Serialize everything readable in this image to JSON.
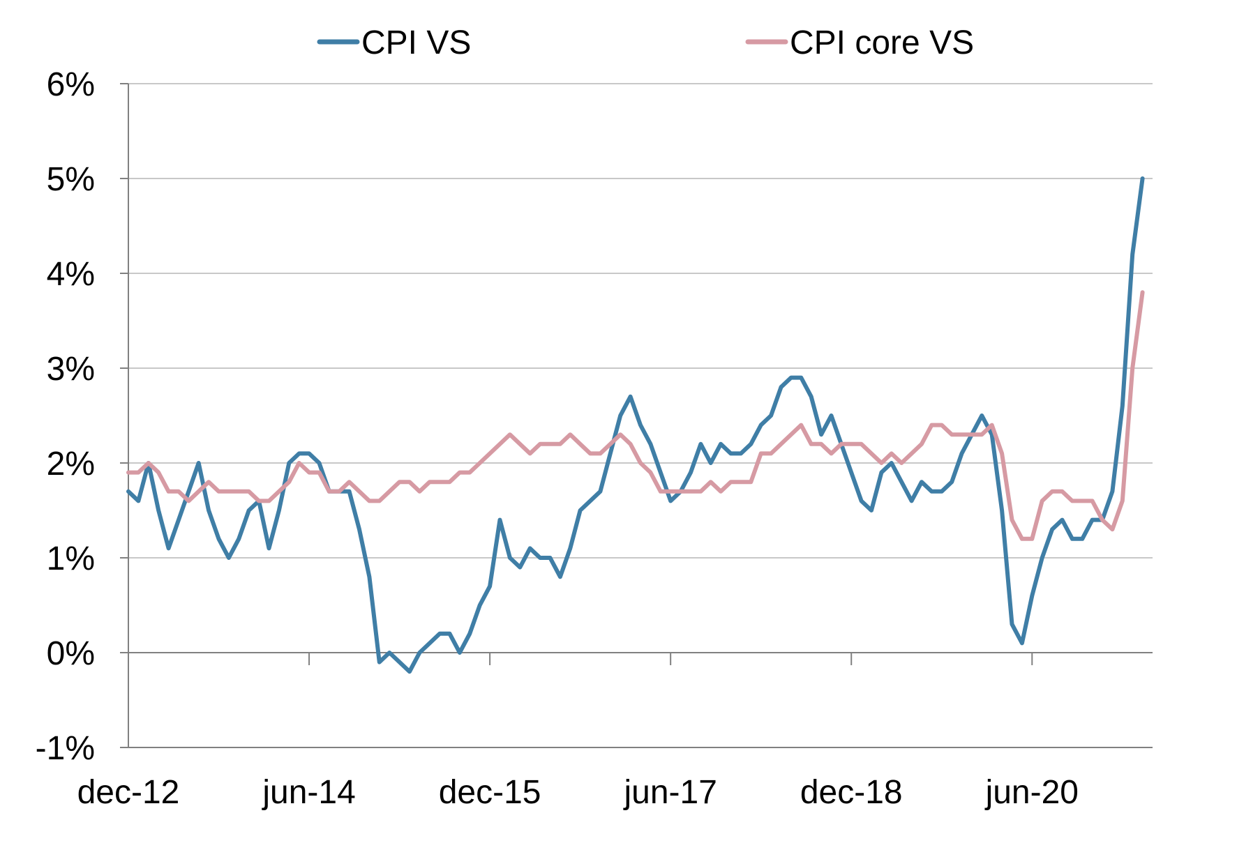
{
  "chart_data": {
    "type": "line",
    "title": "",
    "xlabel": "",
    "ylabel": "",
    "ylim": [
      -1,
      6
    ],
    "y_ticks": [
      "-1%",
      "0%",
      "1%",
      "2%",
      "3%",
      "4%",
      "5%",
      "6%"
    ],
    "x_ticks": [
      "dec-12",
      "jun-14",
      "dec-15",
      "jun-17",
      "dec-18",
      "jun-20"
    ],
    "x_range": [
      "2012-12",
      "2021-06"
    ],
    "grid": "horizontal",
    "legend_position": "top",
    "colors": {
      "cpi": "#3f7ea6",
      "core": "#d69aa3",
      "grid": "#c8c8c8",
      "axis": "#808080"
    },
    "series": [
      {
        "name": "CPI VS",
        "key": "cpi",
        "points": [
          [
            "2012-12",
            1.7
          ],
          [
            "2013-01",
            1.6
          ],
          [
            "2013-02",
            2.0
          ],
          [
            "2013-03",
            1.5
          ],
          [
            "2013-04",
            1.1
          ],
          [
            "2013-05",
            1.4
          ],
          [
            "2013-06",
            1.7
          ],
          [
            "2013-07",
            2.0
          ],
          [
            "2013-08",
            1.5
          ],
          [
            "2013-09",
            1.2
          ],
          [
            "2013-10",
            1.0
          ],
          [
            "2013-11",
            1.2
          ],
          [
            "2013-12",
            1.5
          ],
          [
            "2014-01",
            1.6
          ],
          [
            "2014-02",
            1.1
          ],
          [
            "2014-03",
            1.5
          ],
          [
            "2014-04",
            2.0
          ],
          [
            "2014-05",
            2.1
          ],
          [
            "2014-06",
            2.1
          ],
          [
            "2014-07",
            2.0
          ],
          [
            "2014-08",
            1.7
          ],
          [
            "2014-09",
            1.7
          ],
          [
            "2014-10",
            1.7
          ],
          [
            "2014-11",
            1.3
          ],
          [
            "2014-12",
            0.8
          ],
          [
            "2015-01",
            -0.1
          ],
          [
            "2015-02",
            0.0
          ],
          [
            "2015-03",
            -0.1
          ],
          [
            "2015-04",
            -0.2
          ],
          [
            "2015-05",
            0.0
          ],
          [
            "2015-06",
            0.1
          ],
          [
            "2015-07",
            0.2
          ],
          [
            "2015-08",
            0.2
          ],
          [
            "2015-09",
            0.0
          ],
          [
            "2015-10",
            0.2
          ],
          [
            "2015-11",
            0.5
          ],
          [
            "2015-12",
            0.7
          ],
          [
            "2016-01",
            1.4
          ],
          [
            "2016-02",
            1.0
          ],
          [
            "2016-03",
            0.9
          ],
          [
            "2016-04",
            1.1
          ],
          [
            "2016-05",
            1.0
          ],
          [
            "2016-06",
            1.0
          ],
          [
            "2016-07",
            0.8
          ],
          [
            "2016-08",
            1.1
          ],
          [
            "2016-09",
            1.5
          ],
          [
            "2016-10",
            1.6
          ],
          [
            "2016-11",
            1.7
          ],
          [
            "2016-12",
            2.1
          ],
          [
            "2017-01",
            2.5
          ],
          [
            "2017-02",
            2.7
          ],
          [
            "2017-03",
            2.4
          ],
          [
            "2017-04",
            2.2
          ],
          [
            "2017-05",
            1.9
          ],
          [
            "2017-06",
            1.6
          ],
          [
            "2017-07",
            1.7
          ],
          [
            "2017-08",
            1.9
          ],
          [
            "2017-09",
            2.2
          ],
          [
            "2017-10",
            2.0
          ],
          [
            "2017-11",
            2.2
          ],
          [
            "2017-12",
            2.1
          ],
          [
            "2018-01",
            2.1
          ],
          [
            "2018-02",
            2.2
          ],
          [
            "2018-03",
            2.4
          ],
          [
            "2018-04",
            2.5
          ],
          [
            "2018-05",
            2.8
          ],
          [
            "2018-06",
            2.9
          ],
          [
            "2018-07",
            2.9
          ],
          [
            "2018-08",
            2.7
          ],
          [
            "2018-09",
            2.3
          ],
          [
            "2018-10",
            2.5
          ],
          [
            "2018-11",
            2.2
          ],
          [
            "2018-12",
            1.9
          ],
          [
            "2019-01",
            1.6
          ],
          [
            "2019-02",
            1.5
          ],
          [
            "2019-03",
            1.9
          ],
          [
            "2019-04",
            2.0
          ],
          [
            "2019-05",
            1.8
          ],
          [
            "2019-06",
            1.6
          ],
          [
            "2019-07",
            1.8
          ],
          [
            "2019-08",
            1.7
          ],
          [
            "2019-09",
            1.7
          ],
          [
            "2019-10",
            1.8
          ],
          [
            "2019-11",
            2.1
          ],
          [
            "2019-12",
            2.3
          ],
          [
            "2020-01",
            2.5
          ],
          [
            "2020-02",
            2.3
          ],
          [
            "2020-03",
            1.5
          ],
          [
            "2020-04",
            0.3
          ],
          [
            "2020-05",
            0.1
          ],
          [
            "2020-06",
            0.6
          ],
          [
            "2020-07",
            1.0
          ],
          [
            "2020-08",
            1.3
          ],
          [
            "2020-09",
            1.4
          ],
          [
            "2020-10",
            1.2
          ],
          [
            "2020-11",
            1.2
          ],
          [
            "2020-12",
            1.4
          ],
          [
            "2021-01",
            1.4
          ],
          [
            "2021-02",
            1.7
          ],
          [
            "2021-03",
            2.6
          ],
          [
            "2021-04",
            4.2
          ],
          [
            "2021-05",
            5.0
          ]
        ]
      },
      {
        "name": "CPI core VS",
        "key": "core",
        "points": [
          [
            "2012-12",
            1.9
          ],
          [
            "2013-01",
            1.9
          ],
          [
            "2013-02",
            2.0
          ],
          [
            "2013-03",
            1.9
          ],
          [
            "2013-04",
            1.7
          ],
          [
            "2013-05",
            1.7
          ],
          [
            "2013-06",
            1.6
          ],
          [
            "2013-07",
            1.7
          ],
          [
            "2013-08",
            1.8
          ],
          [
            "2013-09",
            1.7
          ],
          [
            "2013-10",
            1.7
          ],
          [
            "2013-11",
            1.7
          ],
          [
            "2013-12",
            1.7
          ],
          [
            "2014-01",
            1.6
          ],
          [
            "2014-02",
            1.6
          ],
          [
            "2014-03",
            1.7
          ],
          [
            "2014-04",
            1.8
          ],
          [
            "2014-05",
            2.0
          ],
          [
            "2014-06",
            1.9
          ],
          [
            "2014-07",
            1.9
          ],
          [
            "2014-08",
            1.7
          ],
          [
            "2014-09",
            1.7
          ],
          [
            "2014-10",
            1.8
          ],
          [
            "2014-11",
            1.7
          ],
          [
            "2014-12",
            1.6
          ],
          [
            "2015-01",
            1.6
          ],
          [
            "2015-02",
            1.7
          ],
          [
            "2015-03",
            1.8
          ],
          [
            "2015-04",
            1.8
          ],
          [
            "2015-05",
            1.7
          ],
          [
            "2015-06",
            1.8
          ],
          [
            "2015-07",
            1.8
          ],
          [
            "2015-08",
            1.8
          ],
          [
            "2015-09",
            1.9
          ],
          [
            "2015-10",
            1.9
          ],
          [
            "2015-11",
            2.0
          ],
          [
            "2015-12",
            2.1
          ],
          [
            "2016-01",
            2.2
          ],
          [
            "2016-02",
            2.3
          ],
          [
            "2016-03",
            2.2
          ],
          [
            "2016-04",
            2.1
          ],
          [
            "2016-05",
            2.2
          ],
          [
            "2016-06",
            2.2
          ],
          [
            "2016-07",
            2.2
          ],
          [
            "2016-08",
            2.3
          ],
          [
            "2016-09",
            2.2
          ],
          [
            "2016-10",
            2.1
          ],
          [
            "2016-11",
            2.1
          ],
          [
            "2016-12",
            2.2
          ],
          [
            "2017-01",
            2.3
          ],
          [
            "2017-02",
            2.2
          ],
          [
            "2017-03",
            2.0
          ],
          [
            "2017-04",
            1.9
          ],
          [
            "2017-05",
            1.7
          ],
          [
            "2017-06",
            1.7
          ],
          [
            "2017-07",
            1.7
          ],
          [
            "2017-08",
            1.7
          ],
          [
            "2017-09",
            1.7
          ],
          [
            "2017-10",
            1.8
          ],
          [
            "2017-11",
            1.7
          ],
          [
            "2017-12",
            1.8
          ],
          [
            "2018-01",
            1.8
          ],
          [
            "2018-02",
            1.8
          ],
          [
            "2018-03",
            2.1
          ],
          [
            "2018-04",
            2.1
          ],
          [
            "2018-05",
            2.2
          ],
          [
            "2018-06",
            2.3
          ],
          [
            "2018-07",
            2.4
          ],
          [
            "2018-08",
            2.2
          ],
          [
            "2018-09",
            2.2
          ],
          [
            "2018-10",
            2.1
          ],
          [
            "2018-11",
            2.2
          ],
          [
            "2018-12",
            2.2
          ],
          [
            "2019-01",
            2.2
          ],
          [
            "2019-02",
            2.1
          ],
          [
            "2019-03",
            2.0
          ],
          [
            "2019-04",
            2.1
          ],
          [
            "2019-05",
            2.0
          ],
          [
            "2019-06",
            2.1
          ],
          [
            "2019-07",
            2.2
          ],
          [
            "2019-08",
            2.4
          ],
          [
            "2019-09",
            2.4
          ],
          [
            "2019-10",
            2.3
          ],
          [
            "2019-11",
            2.3
          ],
          [
            "2019-12",
            2.3
          ],
          [
            "2020-01",
            2.3
          ],
          [
            "2020-02",
            2.4
          ],
          [
            "2020-03",
            2.1
          ],
          [
            "2020-04",
            1.4
          ],
          [
            "2020-05",
            1.2
          ],
          [
            "2020-06",
            1.2
          ],
          [
            "2020-07",
            1.6
          ],
          [
            "2020-08",
            1.7
          ],
          [
            "2020-09",
            1.7
          ],
          [
            "2020-10",
            1.6
          ],
          [
            "2020-11",
            1.6
          ],
          [
            "2020-12",
            1.6
          ],
          [
            "2021-01",
            1.4
          ],
          [
            "2021-02",
            1.3
          ],
          [
            "2021-03",
            1.6
          ],
          [
            "2021-04",
            3.0
          ],
          [
            "2021-05",
            3.8
          ]
        ]
      }
    ]
  }
}
